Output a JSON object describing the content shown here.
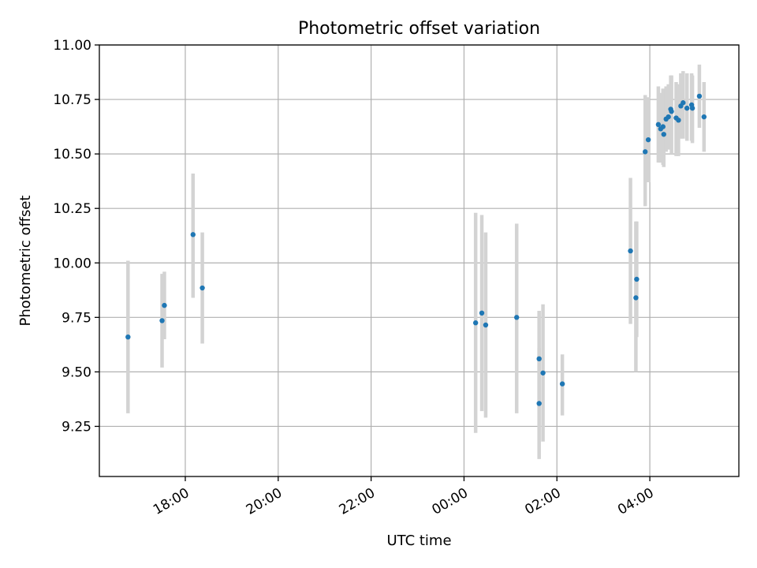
{
  "chart_data": {
    "type": "scatter",
    "title": "Photometric offset variation",
    "xlabel": "UTC time",
    "ylabel": "Photometric offset",
    "x_axis_kind": "time",
    "xlim": [
      "16:09",
      "05:55"
    ],
    "ylim": [
      9.02,
      11.0
    ],
    "x_ticks": [
      "18:00",
      "20:00",
      "22:00",
      "00:00",
      "02:00",
      "04:00"
    ],
    "y_ticks": [
      9.25,
      9.5,
      9.75,
      10.0,
      10.25,
      10.5,
      10.75,
      11.0
    ],
    "y_tick_labels": [
      "9.25",
      "9.50",
      "9.75",
      "10.00",
      "10.25",
      "10.50",
      "10.75",
      "11.00"
    ],
    "grid": true,
    "marker_color": "#1f77b4",
    "errorbar_color": "#d3d3d3",
    "points": [
      {
        "t": "16:46",
        "y": 9.66,
        "lo": 9.31,
        "hi": 10.01
      },
      {
        "t": "17:30",
        "y": 9.735,
        "lo": 9.52,
        "hi": 9.95
      },
      {
        "t": "17:33",
        "y": 9.805,
        "lo": 9.65,
        "hi": 9.96
      },
      {
        "t": "18:10",
        "y": 10.13,
        "lo": 9.84,
        "hi": 10.41
      },
      {
        "t": "18:22",
        "y": 9.885,
        "lo": 9.63,
        "hi": 10.14
      },
      {
        "t": "00:15",
        "y": 9.725,
        "lo": 9.22,
        "hi": 10.23
      },
      {
        "t": "00:23",
        "y": 9.77,
        "lo": 9.32,
        "hi": 10.22
      },
      {
        "t": "00:28",
        "y": 9.715,
        "lo": 9.29,
        "hi": 10.14
      },
      {
        "t": "01:08",
        "y": 9.75,
        "lo": 9.31,
        "hi": 10.18
      },
      {
        "t": "01:37",
        "y": 9.56,
        "lo": 9.34,
        "hi": 9.78
      },
      {
        "t": "01:37",
        "y": 9.355,
        "lo": 9.1,
        "hi": 9.61
      },
      {
        "t": "01:42",
        "y": 9.495,
        "lo": 9.18,
        "hi": 9.81
      },
      {
        "t": "02:07",
        "y": 9.445,
        "lo": 9.3,
        "hi": 9.58
      },
      {
        "t": "03:35",
        "y": 10.055,
        "lo": 9.72,
        "hi": 10.39
      },
      {
        "t": "03:42",
        "y": 9.84,
        "lo": 9.5,
        "hi": 10.19
      },
      {
        "t": "03:43",
        "y": 9.925,
        "lo": 9.66,
        "hi": 10.19
      },
      {
        "t": "03:54",
        "y": 10.51,
        "lo": 10.26,
        "hi": 10.77
      },
      {
        "t": "03:58",
        "y": 10.565,
        "lo": 10.37,
        "hi": 10.76
      },
      {
        "t": "04:11",
        "y": 10.635,
        "lo": 10.46,
        "hi": 10.81
      },
      {
        "t": "04:14",
        "y": 10.615,
        "lo": 10.46,
        "hi": 10.78
      },
      {
        "t": "04:17",
        "y": 10.625,
        "lo": 10.45,
        "hi": 10.8
      },
      {
        "t": "04:18",
        "y": 10.59,
        "lo": 10.44,
        "hi": 10.74
      },
      {
        "t": "04:21",
        "y": 10.66,
        "lo": 10.51,
        "hi": 10.81
      },
      {
        "t": "04:24",
        "y": 10.67,
        "lo": 10.52,
        "hi": 10.82
      },
      {
        "t": "04:27",
        "y": 10.705,
        "lo": 10.52,
        "hi": 10.86
      },
      {
        "t": "04:28",
        "y": 10.695,
        "lo": 10.5,
        "hi": 10.86
      },
      {
        "t": "04:34",
        "y": 10.665,
        "lo": 10.49,
        "hi": 10.83
      },
      {
        "t": "04:37",
        "y": 10.655,
        "lo": 10.49,
        "hi": 10.82
      },
      {
        "t": "04:40",
        "y": 10.72,
        "lo": 10.57,
        "hi": 10.87
      },
      {
        "t": "04:43",
        "y": 10.735,
        "lo": 10.57,
        "hi": 10.88
      },
      {
        "t": "04:48",
        "y": 10.71,
        "lo": 10.56,
        "hi": 10.87
      },
      {
        "t": "04:54",
        "y": 10.725,
        "lo": 10.56,
        "hi": 10.87
      },
      {
        "t": "04:55",
        "y": 10.71,
        "lo": 10.55,
        "hi": 10.86
      },
      {
        "t": "05:04",
        "y": 10.765,
        "lo": 10.62,
        "hi": 10.91
      },
      {
        "t": "05:10",
        "y": 10.67,
        "lo": 10.51,
        "hi": 10.83
      }
    ]
  }
}
